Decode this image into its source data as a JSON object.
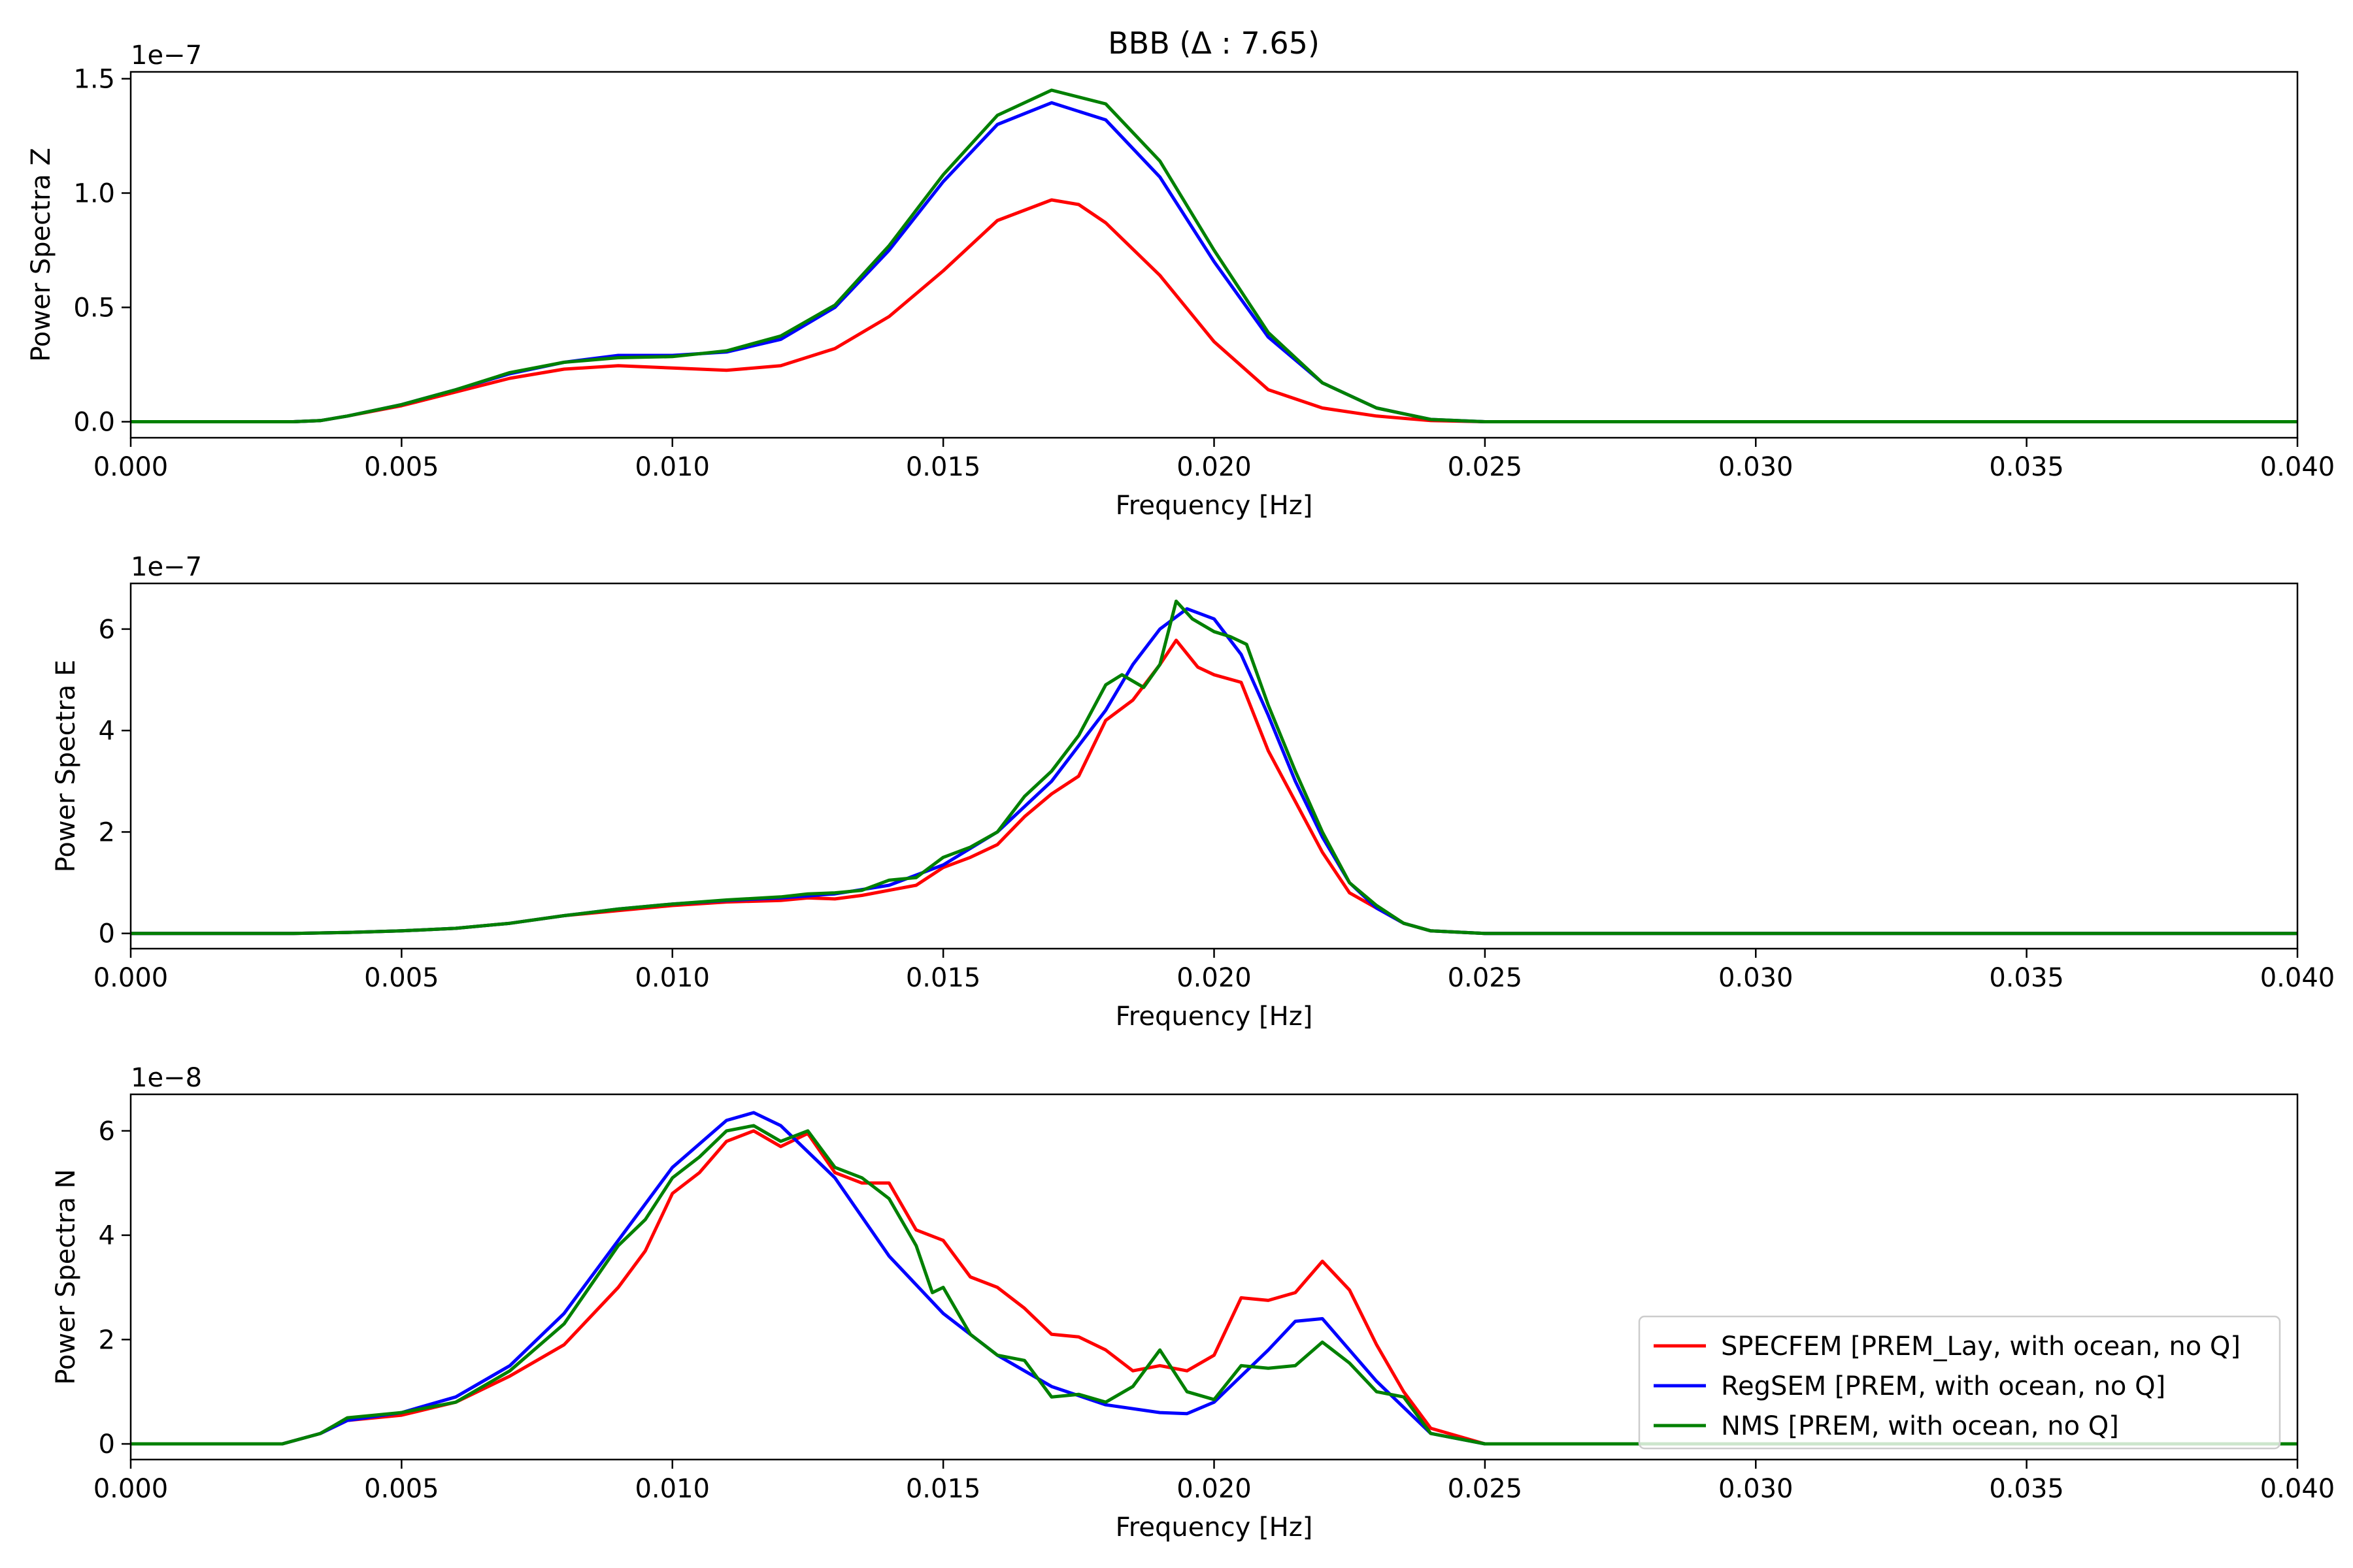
{
  "figure_title": "BBB (Δ : 7.65)",
  "colors": {
    "specfem": "#ff0000",
    "regsem": "#0000ff",
    "nms": "#008000"
  },
  "legend": [
    {
      "label": "SPECFEM [PREM_Lay, with ocean, no Q]",
      "color": "#ff0000"
    },
    {
      "label": "RegSEM [PREM, with ocean, no Q]",
      "color": "#0000ff"
    },
    {
      "label": "NMS [PREM, with ocean, no Q]",
      "color": "#008000"
    }
  ],
  "chart_data": [
    {
      "type": "line",
      "title": "BBB (Δ : 7.65)",
      "xlabel": "Frequency [Hz]",
      "ylabel": "Power Spectra Z",
      "offset_text": "1e−7",
      "xlim": [
        0,
        0.04
      ],
      "ylim": [
        -0.07,
        1.53
      ],
      "xticks": [
        0,
        0.005,
        0.01,
        0.015,
        0.02,
        0.025,
        0.03,
        0.035,
        0.04
      ],
      "xtick_labels": [
        "0.000",
        "0.005",
        "0.010",
        "0.015",
        "0.020",
        "0.025",
        "0.030",
        "0.035",
        "0.040"
      ],
      "yticks": [
        0,
        0.5,
        1.0,
        1.5
      ],
      "ytick_labels": [
        "0.0",
        "0.5",
        "1.0",
        "1.5"
      ],
      "series": [
        {
          "name": "SPECFEM [PREM_Lay, with ocean, no Q]",
          "color": "#ff0000",
          "x": [
            0,
            0.003,
            0.0035,
            0.004,
            0.005,
            0.006,
            0.007,
            0.008,
            0.009,
            0.01,
            0.011,
            0.012,
            0.013,
            0.014,
            0.015,
            0.016,
            0.017,
            0.0175,
            0.018,
            0.019,
            0.02,
            0.021,
            0.022,
            0.023,
            0.024,
            0.025,
            0.04
          ],
          "y": [
            0,
            0,
            0.005,
            0.025,
            0.07,
            0.13,
            0.19,
            0.23,
            0.245,
            0.235,
            0.225,
            0.245,
            0.32,
            0.46,
            0.66,
            0.88,
            0.97,
            0.95,
            0.87,
            0.64,
            0.35,
            0.14,
            0.06,
            0.025,
            0.005,
            0,
            0
          ]
        },
        {
          "name": "RegSEM [PREM, with ocean, no Q]",
          "color": "#0000ff",
          "x": [
            0,
            0.003,
            0.0035,
            0.004,
            0.005,
            0.006,
            0.007,
            0.008,
            0.009,
            0.01,
            0.011,
            0.012,
            0.013,
            0.014,
            0.015,
            0.016,
            0.017,
            0.018,
            0.019,
            0.02,
            0.021,
            0.022,
            0.023,
            0.024,
            0.025,
            0.04
          ],
          "y": [
            0,
            0,
            0.005,
            0.025,
            0.075,
            0.14,
            0.21,
            0.26,
            0.29,
            0.29,
            0.305,
            0.36,
            0.5,
            0.75,
            1.05,
            1.3,
            1.395,
            1.32,
            1.07,
            0.7,
            0.37,
            0.17,
            0.06,
            0.01,
            0,
            0
          ]
        },
        {
          "name": "NMS [PREM, with ocean, no Q]",
          "color": "#008000",
          "x": [
            0,
            0.003,
            0.0035,
            0.004,
            0.005,
            0.006,
            0.007,
            0.008,
            0.009,
            0.01,
            0.011,
            0.012,
            0.013,
            0.014,
            0.015,
            0.016,
            0.017,
            0.018,
            0.019,
            0.02,
            0.021,
            0.022,
            0.023,
            0.024,
            0.025,
            0.04
          ],
          "y": [
            0,
            0,
            0.005,
            0.025,
            0.075,
            0.14,
            0.215,
            0.26,
            0.28,
            0.285,
            0.31,
            0.375,
            0.51,
            0.77,
            1.08,
            1.34,
            1.45,
            1.39,
            1.14,
            0.75,
            0.39,
            0.17,
            0.06,
            0.01,
            0,
            0
          ]
        }
      ]
    },
    {
      "type": "line",
      "title": "",
      "xlabel": "Frequency [Hz]",
      "ylabel": "Power Spectra E",
      "offset_text": "1e−7",
      "xlim": [
        0,
        0.04
      ],
      "ylim": [
        -0.3,
        6.9
      ],
      "xticks": [
        0,
        0.005,
        0.01,
        0.015,
        0.02,
        0.025,
        0.03,
        0.035,
        0.04
      ],
      "xtick_labels": [
        "0.000",
        "0.005",
        "0.010",
        "0.015",
        "0.020",
        "0.025",
        "0.030",
        "0.035",
        "0.040"
      ],
      "yticks": [
        0,
        2,
        4,
        6
      ],
      "ytick_labels": [
        "0",
        "2",
        "4",
        "6"
      ],
      "series": [
        {
          "name": "SPECFEM [PREM_Lay, with ocean, no Q]",
          "color": "#ff0000",
          "x": [
            0,
            0.003,
            0.004,
            0.005,
            0.006,
            0.007,
            0.008,
            0.009,
            0.01,
            0.011,
            0.012,
            0.0125,
            0.013,
            0.0135,
            0.014,
            0.0145,
            0.015,
            0.0155,
            0.016,
            0.0165,
            0.017,
            0.0175,
            0.018,
            0.0185,
            0.019,
            0.0193,
            0.0197,
            0.02,
            0.0205,
            0.021,
            0.0215,
            0.022,
            0.0225,
            0.023,
            0.0235,
            0.024,
            0.025,
            0.04
          ],
          "y": [
            0,
            0,
            0.02,
            0.05,
            0.1,
            0.2,
            0.35,
            0.45,
            0.55,
            0.62,
            0.65,
            0.7,
            0.68,
            0.75,
            0.85,
            0.95,
            1.3,
            1.5,
            1.75,
            2.3,
            2.75,
            3.1,
            4.2,
            4.6,
            5.3,
            5.78,
            5.25,
            5.1,
            4.95,
            3.6,
            2.6,
            1.6,
            0.8,
            0.5,
            0.2,
            0.05,
            0,
            0
          ]
        },
        {
          "name": "RegSEM [PREM, with ocean, no Q]",
          "color": "#0000ff",
          "x": [
            0,
            0.003,
            0.004,
            0.005,
            0.006,
            0.007,
            0.008,
            0.009,
            0.01,
            0.011,
            0.012,
            0.013,
            0.014,
            0.015,
            0.016,
            0.017,
            0.018,
            0.0185,
            0.019,
            0.0195,
            0.02,
            0.0205,
            0.021,
            0.0215,
            0.022,
            0.0225,
            0.023,
            0.0235,
            0.024,
            0.025,
            0.04
          ],
          "y": [
            0,
            0,
            0.02,
            0.05,
            0.1,
            0.2,
            0.35,
            0.48,
            0.58,
            0.65,
            0.7,
            0.78,
            0.95,
            1.35,
            2.0,
            3.0,
            4.4,
            5.3,
            6.0,
            6.4,
            6.2,
            5.5,
            4.3,
            3.0,
            1.9,
            1.0,
            0.5,
            0.2,
            0.05,
            0,
            0
          ]
        },
        {
          "name": "NMS [PREM, with ocean, no Q]",
          "color": "#008000",
          "x": [
            0,
            0.003,
            0.004,
            0.005,
            0.006,
            0.007,
            0.008,
            0.009,
            0.01,
            0.011,
            0.012,
            0.0125,
            0.013,
            0.0135,
            0.014,
            0.0145,
            0.015,
            0.0155,
            0.016,
            0.0165,
            0.017,
            0.0175,
            0.018,
            0.0183,
            0.0187,
            0.019,
            0.0193,
            0.0196,
            0.02,
            0.0203,
            0.0206,
            0.021,
            0.0215,
            0.022,
            0.0225,
            0.023,
            0.0235,
            0.024,
            0.025,
            0.04
          ],
          "y": [
            0,
            0,
            0.02,
            0.05,
            0.1,
            0.2,
            0.35,
            0.48,
            0.58,
            0.66,
            0.72,
            0.78,
            0.8,
            0.85,
            1.05,
            1.1,
            1.5,
            1.7,
            2.0,
            2.7,
            3.2,
            3.9,
            4.9,
            5.1,
            4.85,
            5.3,
            6.55,
            6.2,
            5.95,
            5.85,
            5.7,
            4.5,
            3.2,
            2.0,
            1.0,
            0.55,
            0.2,
            0.05,
            0,
            0
          ]
        }
      ]
    },
    {
      "type": "line",
      "title": "",
      "xlabel": "Frequency [Hz]",
      "ylabel": "Power Spectra N",
      "offset_text": "1e−8",
      "xlim": [
        0,
        0.04
      ],
      "ylim": [
        -0.3,
        6.7
      ],
      "xticks": [
        0,
        0.005,
        0.01,
        0.015,
        0.02,
        0.025,
        0.03,
        0.035,
        0.04
      ],
      "xtick_labels": [
        "0.000",
        "0.005",
        "0.010",
        "0.015",
        "0.020",
        "0.025",
        "0.030",
        "0.035",
        "0.040"
      ],
      "yticks": [
        0,
        2,
        4,
        6
      ],
      "ytick_labels": [
        "0",
        "2",
        "4",
        "6"
      ],
      "series": [
        {
          "name": "SPECFEM [PREM_Lay, with ocean, no Q]",
          "color": "#ff0000",
          "x": [
            0,
            0.0028,
            0.0035,
            0.004,
            0.005,
            0.006,
            0.007,
            0.008,
            0.009,
            0.0095,
            0.01,
            0.0105,
            0.011,
            0.0115,
            0.012,
            0.0125,
            0.013,
            0.0135,
            0.014,
            0.0145,
            0.015,
            0.0155,
            0.016,
            0.0165,
            0.017,
            0.0175,
            0.018,
            0.0185,
            0.019,
            0.0195,
            0.02,
            0.0205,
            0.021,
            0.0215,
            0.022,
            0.0225,
            0.023,
            0.0235,
            0.024,
            0.025,
            0.04
          ],
          "y": [
            0,
            0,
            0.2,
            0.45,
            0.55,
            0.8,
            1.3,
            1.9,
            3.0,
            3.7,
            4.8,
            5.2,
            5.8,
            6.0,
            5.7,
            5.95,
            5.2,
            5.0,
            5.0,
            4.1,
            3.9,
            3.2,
            3.0,
            2.6,
            2.1,
            2.05,
            1.8,
            1.4,
            1.5,
            1.4,
            1.7,
            2.8,
            2.75,
            2.9,
            3.5,
            2.95,
            1.9,
            1.0,
            0.3,
            0,
            0
          ]
        },
        {
          "name": "RegSEM [PREM, with ocean, no Q]",
          "color": "#0000ff",
          "x": [
            0,
            0.0028,
            0.0035,
            0.004,
            0.005,
            0.006,
            0.007,
            0.008,
            0.009,
            0.01,
            0.011,
            0.0115,
            0.012,
            0.013,
            0.014,
            0.015,
            0.016,
            0.017,
            0.018,
            0.019,
            0.0195,
            0.02,
            0.021,
            0.0215,
            0.022,
            0.023,
            0.024,
            0.025,
            0.04
          ],
          "y": [
            0,
            0,
            0.2,
            0.45,
            0.6,
            0.9,
            1.5,
            2.5,
            3.9,
            5.3,
            6.2,
            6.35,
            6.1,
            5.1,
            3.6,
            2.5,
            1.7,
            1.1,
            0.75,
            0.6,
            0.58,
            0.8,
            1.8,
            2.35,
            2.4,
            1.2,
            0.2,
            0,
            0
          ]
        },
        {
          "name": "NMS [PREM, with ocean, no Q]",
          "color": "#008000",
          "x": [
            0,
            0.0028,
            0.0035,
            0.004,
            0.005,
            0.006,
            0.007,
            0.008,
            0.009,
            0.0095,
            0.01,
            0.0105,
            0.011,
            0.0115,
            0.012,
            0.0125,
            0.013,
            0.0135,
            0.014,
            0.0145,
            0.0148,
            0.015,
            0.0155,
            0.016,
            0.0165,
            0.017,
            0.0175,
            0.018,
            0.0185,
            0.019,
            0.0195,
            0.02,
            0.0205,
            0.021,
            0.0215,
            0.022,
            0.0225,
            0.023,
            0.0235,
            0.024,
            0.025,
            0.04
          ],
          "y": [
            0,
            0,
            0.2,
            0.5,
            0.6,
            0.8,
            1.4,
            2.3,
            3.8,
            4.3,
            5.1,
            5.5,
            6.0,
            6.1,
            5.8,
            6.0,
            5.3,
            5.1,
            4.7,
            3.8,
            2.9,
            3.0,
            2.1,
            1.7,
            1.6,
            0.9,
            0.95,
            0.8,
            1.1,
            1.8,
            1.0,
            0.85,
            1.5,
            1.45,
            1.5,
            1.95,
            1.55,
            1.0,
            0.9,
            0.2,
            0,
            0
          ]
        }
      ]
    }
  ]
}
